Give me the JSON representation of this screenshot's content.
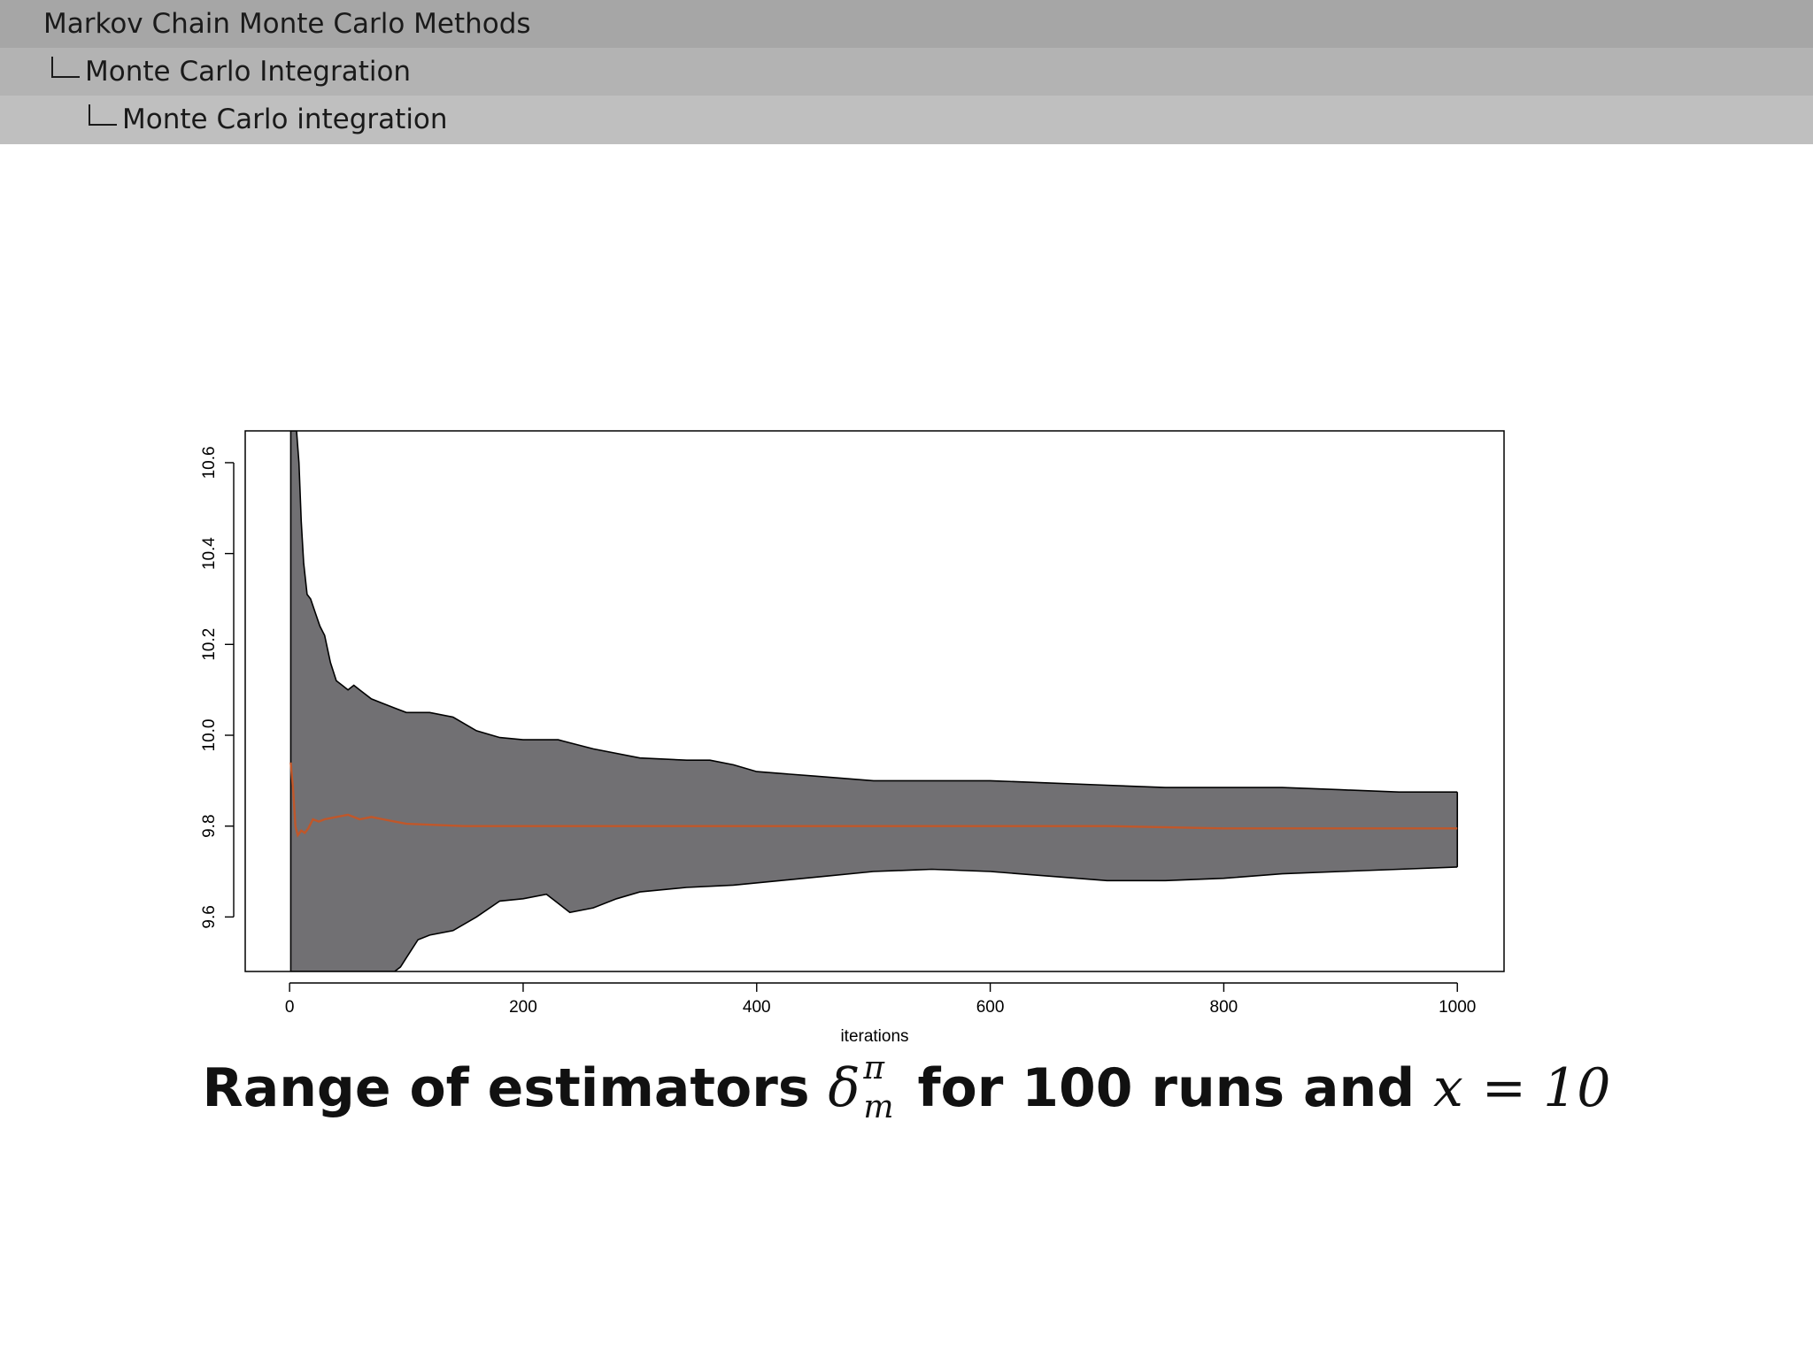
{
  "breadcrumb": {
    "section": "Markov Chain Monte Carlo Methods",
    "subsection": "Monte Carlo Integration",
    "frame": "Monte Carlo integration"
  },
  "caption": {
    "text_before": "Range of estimators",
    "symbol": "δ",
    "superscript": "π",
    "subscript": "m",
    "text_middle": "for 100 runs and",
    "math_var": "x",
    "math_rest": "= 10"
  },
  "chart_data": {
    "type": "area",
    "xlabel": "iterations",
    "ylabel": "",
    "xlim": [
      -38,
      1040
    ],
    "ylim": [
      9.48,
      10.67
    ],
    "xticks": [
      0,
      200,
      400,
      600,
      800,
      1000
    ],
    "xtick_labels": [
      "0",
      "200",
      "400",
      "600",
      "800",
      "1000"
    ],
    "yticks": [
      9.6,
      9.8,
      10.0,
      10.2,
      10.4,
      10.6
    ],
    "ytick_labels": [
      "9.6",
      "9.8",
      "10.0",
      "10.2",
      "10.4",
      "10.6"
    ],
    "grid": false,
    "colors": {
      "band": "#717073",
      "band_edge": "#000000",
      "mean": "#c0572a"
    },
    "series": [
      {
        "role": "upper",
        "x": [
          1,
          3,
          6,
          8,
          10,
          12,
          15,
          18,
          22,
          26,
          30,
          35,
          40,
          45,
          50,
          55,
          60,
          70,
          80,
          90,
          100,
          120,
          140,
          160,
          180,
          200,
          230,
          260,
          300,
          340,
          360,
          380,
          400,
          450,
          500,
          550,
          600,
          650,
          700,
          750,
          800,
          850,
          900,
          950,
          1000
        ],
        "y": [
          10.67,
          10.67,
          10.67,
          10.6,
          10.47,
          10.38,
          10.31,
          10.3,
          10.27,
          10.24,
          10.22,
          10.16,
          10.12,
          10.11,
          10.1,
          10.11,
          10.1,
          10.08,
          10.07,
          10.06,
          10.05,
          10.05,
          10.04,
          10.01,
          9.995,
          9.99,
          9.99,
          9.97,
          9.95,
          9.945,
          9.945,
          9.935,
          9.92,
          9.91,
          9.9,
          9.9,
          9.9,
          9.895,
          9.89,
          9.885,
          9.885,
          9.885,
          9.88,
          9.875,
          9.875
        ]
      },
      {
        "role": "lower",
        "x": [
          1,
          90,
          95,
          100,
          110,
          120,
          140,
          160,
          180,
          200,
          220,
          240,
          260,
          280,
          300,
          340,
          380,
          420,
          460,
          500,
          550,
          600,
          650,
          700,
          750,
          800,
          850,
          900,
          950,
          1000
        ],
        "y": [
          9.48,
          9.48,
          9.49,
          9.51,
          9.55,
          9.56,
          9.57,
          9.6,
          9.635,
          9.64,
          9.65,
          9.61,
          9.62,
          9.64,
          9.655,
          9.665,
          9.67,
          9.68,
          9.69,
          9.7,
          9.705,
          9.7,
          9.69,
          9.68,
          9.68,
          9.685,
          9.695,
          9.7,
          9.705,
          9.71
        ]
      },
      {
        "role": "mean",
        "x": [
          1,
          3,
          5,
          7,
          10,
          13,
          16,
          20,
          25,
          30,
          40,
          50,
          60,
          70,
          80,
          90,
          100,
          150,
          200,
          300,
          400,
          500,
          600,
          700,
          800,
          900,
          1000
        ],
        "y": [
          9.94,
          9.88,
          9.8,
          9.78,
          9.79,
          9.785,
          9.795,
          9.815,
          9.81,
          9.815,
          9.82,
          9.825,
          9.815,
          9.82,
          9.815,
          9.81,
          9.805,
          9.8,
          9.8,
          9.8,
          9.8,
          9.8,
          9.8,
          9.8,
          9.795,
          9.795,
          9.795
        ]
      }
    ]
  }
}
